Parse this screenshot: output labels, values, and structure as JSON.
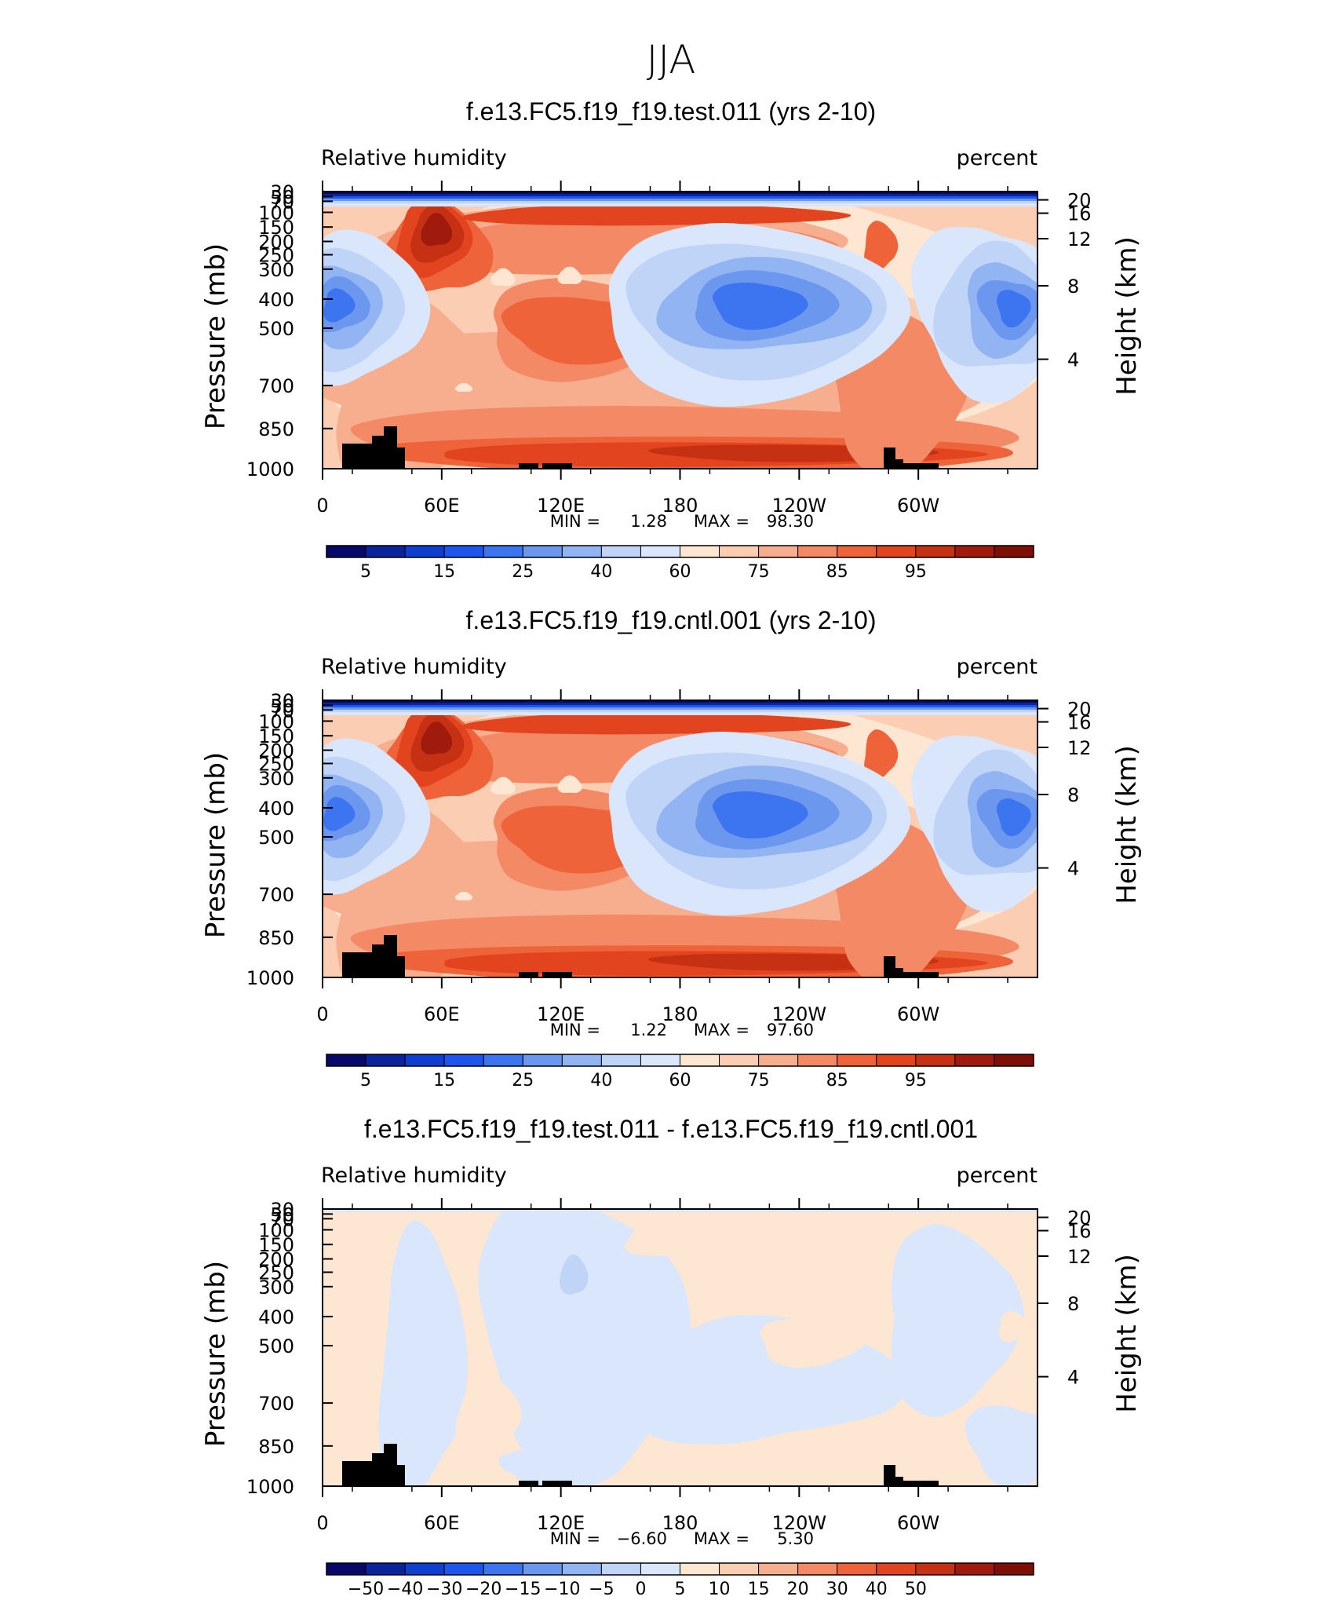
{
  "title": "JJA",
  "colorscales": {
    "absolute": [
      "#08086b",
      "#0a249b",
      "#0f3fd1",
      "#1d55ee",
      "#3c75ef",
      "#6b97ee",
      "#92b4f2",
      "#bfd4f7",
      "#dae6fb",
      "#fde6d2",
      "#fbcdb3",
      "#f7ae8f",
      "#f38a65",
      "#ee6339",
      "#e2441f",
      "#c63113",
      "#a01a0d",
      "#7d0f07"
    ],
    "difference": [
      "#08086b",
      "#0a249b",
      "#0f3fd1",
      "#1d55ee",
      "#3c75ef",
      "#6b97ee",
      "#92b4f2",
      "#bfd4f7",
      "#dae6fb",
      "#fde6d2",
      "#fbcdb3",
      "#f7ae8f",
      "#f38a65",
      "#ee6339",
      "#e2441f",
      "#c63113",
      "#a01a0d",
      "#7d0f07"
    ]
  },
  "axes": {
    "pressure_label": "Pressure (mb)",
    "height_label": "Height (km)",
    "pressure_ticks": [
      "30",
      "50",
      "70",
      "100",
      "150",
      "200",
      "250",
      "300",
      "400",
      "500",
      "700",
      "850",
      "1000"
    ],
    "height_ticks": [
      "20",
      "16",
      "12",
      "8",
      "4"
    ],
    "lon_ticks": [
      "0",
      "60E",
      "120E",
      "180",
      "120W",
      "60W"
    ]
  },
  "chart_data": [
    {
      "type": "heatmap",
      "title": "f.e13.FC5.f19_f19.test.011 (yrs 2-10)",
      "left_label": "Relative humidity",
      "right_label": "percent",
      "xlabel": "",
      "ylabel": "Pressure (mb)",
      "y2label": "Height (km)",
      "x_ticks": [
        "0",
        "60E",
        "120E",
        "180",
        "120W",
        "60W"
      ],
      "y_ticks": [
        "30",
        "50",
        "70",
        "100",
        "150",
        "200",
        "250",
        "300",
        "400",
        "500",
        "700",
        "850",
        "1000"
      ],
      "y2_ticks": [
        "20",
        "16",
        "12",
        "8",
        "4"
      ],
      "min_label": "MIN =",
      "min_value": "1.28",
      "max_label": "MAX =",
      "max_value": "98.30",
      "colorbar_labels": [
        "5",
        "15",
        "25",
        "40",
        "60",
        "75",
        "85",
        "95"
      ],
      "scale": "absolute"
    },
    {
      "type": "heatmap",
      "title": "f.e13.FC5.f19_f19.cntl.001 (yrs 2-10)",
      "left_label": "Relative humidity",
      "right_label": "percent",
      "xlabel": "",
      "ylabel": "Pressure (mb)",
      "y2label": "Height (km)",
      "x_ticks": [
        "0",
        "60E",
        "120E",
        "180",
        "120W",
        "60W"
      ],
      "y_ticks": [
        "30",
        "50",
        "70",
        "100",
        "150",
        "200",
        "250",
        "300",
        "400",
        "500",
        "700",
        "850",
        "1000"
      ],
      "y2_ticks": [
        "20",
        "16",
        "12",
        "8",
        "4"
      ],
      "min_label": "MIN =",
      "min_value": "1.22",
      "max_label": "MAX =",
      "max_value": "97.60",
      "colorbar_labels": [
        "5",
        "15",
        "25",
        "40",
        "60",
        "75",
        "85",
        "95"
      ],
      "scale": "absolute"
    },
    {
      "type": "heatmap",
      "title": "f.e13.FC5.f19_f19.test.011 - f.e13.FC5.f19_f19.cntl.001",
      "left_label": "Relative humidity",
      "right_label": "percent",
      "xlabel": "",
      "ylabel": "Pressure (mb)",
      "y2label": "Height (km)",
      "x_ticks": [
        "0",
        "60E",
        "120E",
        "180",
        "120W",
        "60W"
      ],
      "y_ticks": [
        "30",
        "50",
        "70",
        "100",
        "150",
        "200",
        "250",
        "300",
        "400",
        "500",
        "700",
        "850",
        "1000"
      ],
      "y2_ticks": [
        "20",
        "16",
        "12",
        "8",
        "4"
      ],
      "min_label": "MIN =",
      "min_value": "−6.60",
      "max_label": "MAX =",
      "max_value": "5.30",
      "colorbar_labels": [
        "−50",
        "−40",
        "−30",
        "−20",
        "−15",
        "−10",
        "−5",
        "0",
        "5",
        "10",
        "15",
        "20",
        "30",
        "40",
        "50"
      ],
      "scale": "difference"
    }
  ]
}
